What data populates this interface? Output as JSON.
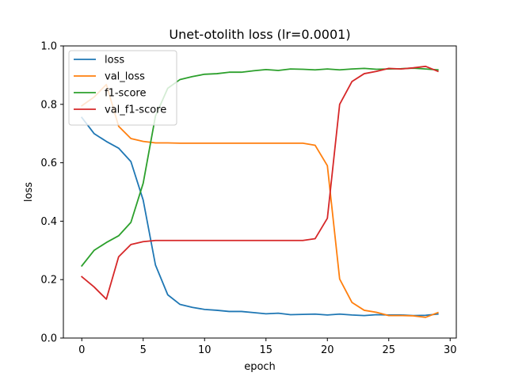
{
  "chart_data": {
    "type": "line",
    "title": "Unet-otolith loss (lr=0.0001)",
    "xlabel": "epoch",
    "ylabel": "loss",
    "xlim": [
      -1.5,
      30.5
    ],
    "ylim": [
      0.0,
      1.0
    ],
    "xticks": [
      0,
      5,
      10,
      15,
      20,
      25,
      30
    ],
    "yticks": [
      0.0,
      0.2,
      0.4,
      0.6,
      0.8,
      1.0
    ],
    "xtick_labels": [
      "0",
      "5",
      "10",
      "15",
      "20",
      "25",
      "30"
    ],
    "ytick_labels": [
      "0.0",
      "0.2",
      "0.4",
      "0.6",
      "0.8",
      "1.0"
    ],
    "grid": false,
    "legend_position": "top-left",
    "x": [
      0,
      1,
      2,
      3,
      4,
      5,
      6,
      7,
      8,
      9,
      10,
      11,
      12,
      13,
      14,
      15,
      16,
      17,
      18,
      19,
      20,
      21,
      22,
      23,
      24,
      25,
      26,
      27,
      28,
      29
    ],
    "series": [
      {
        "name": "loss",
        "color": "#1f77b4",
        "values": [
          0.755,
          0.7,
          0.673,
          0.65,
          0.604,
          0.472,
          0.25,
          0.148,
          0.115,
          0.105,
          0.098,
          0.095,
          0.091,
          0.091,
          0.087,
          0.083,
          0.085,
          0.08,
          0.081,
          0.082,
          0.079,
          0.082,
          0.079,
          0.077,
          0.08,
          0.079,
          0.079,
          0.077,
          0.078,
          0.082
        ]
      },
      {
        "name": "val_loss",
        "color": "#ff7f0e",
        "values": [
          0.795,
          0.825,
          0.868,
          0.725,
          0.683,
          0.673,
          0.668,
          0.668,
          0.667,
          0.667,
          0.667,
          0.667,
          0.667,
          0.667,
          0.667,
          0.667,
          0.667,
          0.667,
          0.667,
          0.66,
          0.59,
          0.202,
          0.122,
          0.095,
          0.088,
          0.077,
          0.077,
          0.076,
          0.071,
          0.087
        ]
      },
      {
        "name": "f1-score",
        "color": "#2ca02c",
        "values": [
          0.247,
          0.3,
          0.327,
          0.35,
          0.396,
          0.53,
          0.76,
          0.855,
          0.885,
          0.895,
          0.903,
          0.905,
          0.91,
          0.91,
          0.915,
          0.919,
          0.916,
          0.921,
          0.92,
          0.918,
          0.921,
          0.918,
          0.921,
          0.923,
          0.92,
          0.921,
          0.922,
          0.924,
          0.921,
          0.918
        ]
      },
      {
        "name": "val_f1-score",
        "color": "#d62728",
        "values": [
          0.21,
          0.175,
          0.133,
          0.278,
          0.32,
          0.33,
          0.334,
          0.334,
          0.334,
          0.334,
          0.334,
          0.334,
          0.334,
          0.334,
          0.334,
          0.334,
          0.334,
          0.334,
          0.334,
          0.34,
          0.41,
          0.8,
          0.878,
          0.905,
          0.913,
          0.923,
          0.921,
          0.925,
          0.93,
          0.913
        ]
      }
    ]
  }
}
